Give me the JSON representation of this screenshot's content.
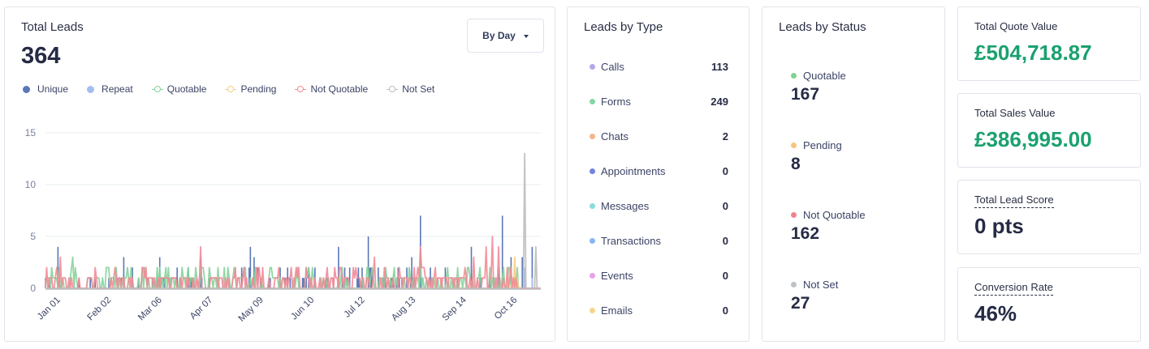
{
  "total_leads": {
    "title": "Total Leads",
    "value": "364",
    "period_button": "By Day",
    "legend": [
      {
        "label": "Unique",
        "style": "dot",
        "color": "#5a77b8"
      },
      {
        "label": "Repeat",
        "style": "dot",
        "color": "#a5bdf0"
      },
      {
        "label": "Quotable",
        "style": "ring",
        "color": "#86d39b"
      },
      {
        "label": "Pending",
        "style": "ring",
        "color": "#f6cf7d"
      },
      {
        "label": "Not Quotable",
        "style": "ring",
        "color": "#f38b98"
      },
      {
        "label": "Not Set",
        "style": "ring",
        "color": "#bdbdbd"
      }
    ]
  },
  "chart_data": {
    "type": "line",
    "title": "Total Leads",
    "xlabel": "",
    "ylabel": "",
    "ylim": [
      0,
      15
    ],
    "yticks": [
      "0",
      "5",
      "10",
      "15"
    ],
    "xticks": [
      "Jan 01",
      "Feb 02",
      "Mar 06",
      "Apr 07",
      "May 09",
      "Jun 10",
      "Jul 12",
      "Aug 13",
      "Sep 14",
      "Oct 16"
    ],
    "days": 310,
    "grid": true,
    "legend_position": "top-left",
    "series": [
      {
        "name": "Unique",
        "kind": "bar",
        "color": "#5a77b8",
        "peaks": [
          [
            10,
            4
          ],
          [
            63,
            3
          ],
          [
            92,
            3
          ],
          [
            125,
            3
          ],
          [
            165,
            4
          ],
          [
            168,
            3
          ],
          [
            236,
            4
          ],
          [
            260,
            5
          ],
          [
            295,
            3
          ],
          [
            302,
            7
          ],
          [
            343,
            4
          ],
          [
            368,
            7
          ],
          [
            375,
            3
          ],
          [
            384,
            3
          ],
          [
            392,
            4
          ]
        ]
      },
      {
        "name": "Repeat",
        "kind": "bar",
        "color": "#a5bdf0",
        "peaks": [
          [
            380,
            1
          ],
          [
            386,
            2
          ],
          [
            392,
            1
          ]
        ]
      },
      {
        "name": "Quotable",
        "kind": "line",
        "color": "#86d39b",
        "peaks": [
          [
            5,
            2
          ],
          [
            22,
            3
          ],
          [
            50,
            2
          ],
          [
            78,
            2
          ],
          [
            90,
            2
          ],
          [
            110,
            2
          ],
          [
            115,
            2
          ],
          [
            152,
            2
          ],
          [
            170,
            2
          ],
          [
            182,
            2
          ],
          [
            215,
            2
          ],
          [
            260,
            2
          ],
          [
            302,
            3
          ],
          [
            340,
            2
          ],
          [
            350,
            2
          ]
        ]
      },
      {
        "name": "Pending",
        "kind": "line",
        "color": "#f6cf7d",
        "peaks": [
          [
            378,
            3
          ]
        ]
      },
      {
        "name": "Not Quotable",
        "kind": "line",
        "color": "#f38b98",
        "peaks": [
          [
            12,
            3
          ],
          [
            125,
            4
          ],
          [
            160,
            2
          ],
          [
            198,
            2
          ],
          [
            250,
            2
          ],
          [
            265,
            3
          ],
          [
            302,
            4
          ],
          [
            305,
            2
          ],
          [
            345,
            3
          ],
          [
            355,
            4
          ],
          [
            360,
            5
          ],
          [
            365,
            4
          ],
          [
            372,
            2
          ]
        ]
      },
      {
        "name": "Not Set",
        "kind": "line",
        "color": "#bdbdbd",
        "peaks": [
          [
            386,
            13
          ],
          [
            395,
            4
          ]
        ]
      }
    ]
  },
  "leads_by_type": {
    "title": "Leads by Type",
    "items": [
      {
        "label": "Calls",
        "count": "113",
        "color": "#b7a7ea"
      },
      {
        "label": "Forms",
        "count": "249",
        "color": "#86d6a5"
      },
      {
        "label": "Chats",
        "count": "2",
        "color": "#f6b48a"
      },
      {
        "label": "Appointments",
        "count": "0",
        "color": "#7184e0"
      },
      {
        "label": "Messages",
        "count": "0",
        "color": "#8adcd8"
      },
      {
        "label": "Transactions",
        "count": "0",
        "color": "#86b7ee"
      },
      {
        "label": "Events",
        "count": "0",
        "color": "#e7a2ea"
      },
      {
        "label": "Emails",
        "count": "0",
        "color": "#f8d48a"
      }
    ]
  },
  "leads_by_status": {
    "title": "Leads by Status",
    "items": [
      {
        "label": "Quotable",
        "value": "167",
        "color": "#7fd28f"
      },
      {
        "label": "Pending",
        "value": "8",
        "color": "#f6c47a"
      },
      {
        "label": "Not Quotable",
        "value": "162",
        "color": "#f0828f"
      },
      {
        "label": "Not Set",
        "value": "27",
        "color": "#bcc3c8"
      }
    ]
  },
  "stats": {
    "quote": {
      "label": "Total Quote Value",
      "value": "£504,718.87"
    },
    "sales": {
      "label": "Total Sales Value",
      "value": "£386,995.00"
    },
    "score": {
      "label": "Total Lead Score",
      "value": "0 pts"
    },
    "conversion": {
      "label": "Conversion Rate",
      "value": "46%"
    }
  }
}
